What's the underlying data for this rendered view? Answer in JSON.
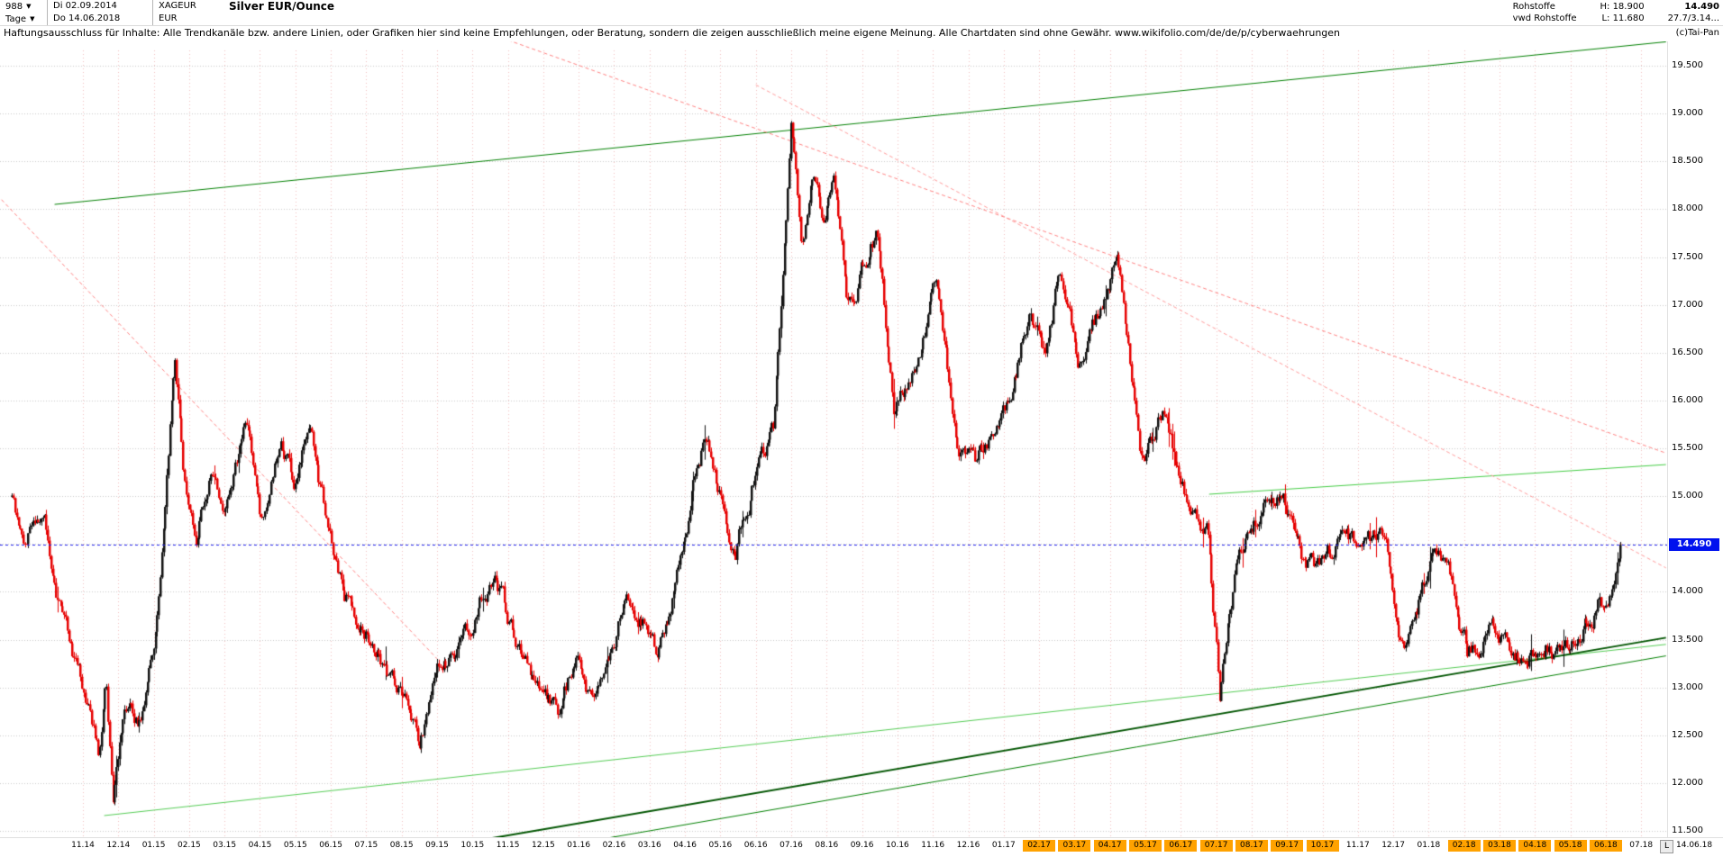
{
  "icons": {
    "dropdown_arrow": "▼"
  },
  "header": {
    "bars_count": "988",
    "start_date": "Di 02.09.2014",
    "symbol": "XAGEUR",
    "title": "Silver EUR/Ounce",
    "timeframe": "Tage",
    "end_date": "Do 14.06.2018",
    "currency": "EUR",
    "right": {
      "category": "Rohstoffe",
      "source": "vwd Rohstoffe",
      "high": "H: 18.900",
      "low": "L: 11.680",
      "last": "14.490",
      "extra": "27.7/3.14..."
    }
  },
  "disclaimer": {
    "text": "Haftungsausschluss für Inhalte: Alle Trendkanäle bzw. andere Linien, oder Grafiken hier sind keine Empfehlungen, oder Beratung, sondern die zeigen ausschließlich meine eigene Meinung. Alle Chartdaten sind ohne Gewähr.  www.wikifolio.com/de/de/p/cyberwaehrungen",
    "copyright": "(c)Tai-Pan"
  },
  "axis": {
    "y_ticks": [
      {
        "price": 19.5,
        "label": "19.500"
      },
      {
        "price": 19.0,
        "label": "19.000"
      },
      {
        "price": 18.5,
        "label": "18.500"
      },
      {
        "price": 18.0,
        "label": "18.000"
      },
      {
        "price": 17.5,
        "label": "17.500"
      },
      {
        "price": 17.0,
        "label": "17.000"
      },
      {
        "price": 16.5,
        "label": "16.500"
      },
      {
        "price": 16.0,
        "label": "16.000"
      },
      {
        "price": 15.5,
        "label": "15.500"
      },
      {
        "price": 15.0,
        "label": "15.000"
      },
      {
        "price": 14.5,
        "label": "14.500"
      },
      {
        "price": 14.0,
        "label": "14.000"
      },
      {
        "price": 13.5,
        "label": "13.500"
      },
      {
        "price": 13.0,
        "label": "13.000"
      },
      {
        "price": 12.5,
        "label": "12.500"
      },
      {
        "price": 12.0,
        "label": "12.000"
      },
      {
        "price": 11.5,
        "label": "11.500"
      }
    ],
    "price_tag": {
      "price": 14.49,
      "label": "14.490",
      "color": "#0011ee"
    },
    "x_labels": [
      {
        "m": 2,
        "label": "11.14",
        "highlight": false
      },
      {
        "m": 3,
        "label": "12.14",
        "highlight": false
      },
      {
        "m": 4,
        "label": "01.15",
        "highlight": false
      },
      {
        "m": 5,
        "label": "02.15",
        "highlight": false
      },
      {
        "m": 6,
        "label": "03.15",
        "highlight": false
      },
      {
        "m": 7,
        "label": "04.15",
        "highlight": false
      },
      {
        "m": 8,
        "label": "05.15",
        "highlight": false
      },
      {
        "m": 9,
        "label": "06.15",
        "highlight": false
      },
      {
        "m": 10,
        "label": "07.15",
        "highlight": false
      },
      {
        "m": 11,
        "label": "08.15",
        "highlight": false
      },
      {
        "m": 12,
        "label": "09.15",
        "highlight": false
      },
      {
        "m": 13,
        "label": "10.15",
        "highlight": false
      },
      {
        "m": 14,
        "label": "11.15",
        "highlight": false
      },
      {
        "m": 15,
        "label": "12.15",
        "highlight": false
      },
      {
        "m": 16,
        "label": "01.16",
        "highlight": false
      },
      {
        "m": 17,
        "label": "02.16",
        "highlight": false
      },
      {
        "m": 18,
        "label": "03.16",
        "highlight": false
      },
      {
        "m": 19,
        "label": "04.16",
        "highlight": false
      },
      {
        "m": 20,
        "label": "05.16",
        "highlight": false
      },
      {
        "m": 21,
        "label": "06.16",
        "highlight": false
      },
      {
        "m": 22,
        "label": "07.16",
        "highlight": false
      },
      {
        "m": 23,
        "label": "08.16",
        "highlight": false
      },
      {
        "m": 24,
        "label": "09.16",
        "highlight": false
      },
      {
        "m": 25,
        "label": "10.16",
        "highlight": false
      },
      {
        "m": 26,
        "label": "11.16",
        "highlight": false
      },
      {
        "m": 27,
        "label": "12.16",
        "highlight": false
      },
      {
        "m": 28,
        "label": "01.17",
        "highlight": false
      },
      {
        "m": 29,
        "label": "02.17",
        "highlight": true
      },
      {
        "m": 30,
        "label": "03.17",
        "highlight": true
      },
      {
        "m": 31,
        "label": "04.17",
        "highlight": true
      },
      {
        "m": 32,
        "label": "05.17",
        "highlight": true
      },
      {
        "m": 33,
        "label": "06.17",
        "highlight": true
      },
      {
        "m": 34,
        "label": "07.17",
        "highlight": true
      },
      {
        "m": 35,
        "label": "08.17",
        "highlight": true
      },
      {
        "m": 36,
        "label": "09.17",
        "highlight": true
      },
      {
        "m": 37,
        "label": "10.17",
        "highlight": true
      },
      {
        "m": 38,
        "label": "11.17",
        "highlight": false
      },
      {
        "m": 39,
        "label": "12.17",
        "highlight": false
      },
      {
        "m": 40,
        "label": "01.18",
        "highlight": false
      },
      {
        "m": 41,
        "label": "02.18",
        "highlight": true
      },
      {
        "m": 42,
        "label": "03.18",
        "highlight": true
      },
      {
        "m": 43,
        "label": "04.18",
        "highlight": true
      },
      {
        "m": 44,
        "label": "05.18",
        "highlight": true
      },
      {
        "m": 45,
        "label": "06.18",
        "highlight": true
      },
      {
        "m": 46,
        "label": "07.18",
        "highlight": false
      }
    ],
    "scale_button": "L",
    "last_date": "14.06.18"
  },
  "chart_data": {
    "type": "candlestick",
    "title": "Silver EUR/Ounce",
    "period": "Tage",
    "date_range": [
      "02.09.2014",
      "14.06.2018"
    ],
    "bars": 988,
    "high": 18.9,
    "low": 11.68,
    "last": 14.49,
    "x_unit": "months_since_2014-09",
    "x_range": [
      0,
      46.7
    ],
    "ylim": [
      11.43,
      19.75
    ],
    "grid": true,
    "price_path_anchors": [
      [
        0.0,
        15.0
      ],
      [
        0.35,
        14.5
      ],
      [
        0.9,
        14.8
      ],
      [
        1.4,
        13.75
      ],
      [
        2.0,
        13.05
      ],
      [
        2.45,
        12.3
      ],
      [
        2.65,
        12.95
      ],
      [
        2.85,
        11.68
      ],
      [
        3.15,
        12.8
      ],
      [
        3.6,
        12.65
      ],
      [
        4.0,
        13.6
      ],
      [
        4.35,
        15.15
      ],
      [
        4.6,
        16.5
      ],
      [
        4.85,
        15.25
      ],
      [
        5.2,
        14.6
      ],
      [
        5.6,
        15.3
      ],
      [
        6.0,
        14.9
      ],
      [
        6.6,
        15.7
      ],
      [
        7.0,
        14.75
      ],
      [
        7.6,
        15.6
      ],
      [
        8.0,
        15.1
      ],
      [
        8.4,
        15.65
      ],
      [
        8.8,
        14.9
      ],
      [
        9.4,
        14.05
      ],
      [
        10.0,
        13.6
      ],
      [
        10.6,
        13.2
      ],
      [
        11.2,
        12.75
      ],
      [
        11.5,
        12.35
      ],
      [
        11.9,
        13.1
      ],
      [
        12.4,
        13.3
      ],
      [
        13.0,
        13.6
      ],
      [
        13.6,
        14.2
      ],
      [
        14.1,
        13.6
      ],
      [
        14.6,
        13.2
      ],
      [
        15.1,
        12.95
      ],
      [
        15.45,
        12.65
      ],
      [
        15.9,
        13.3
      ],
      [
        16.3,
        12.85
      ],
      [
        16.8,
        13.3
      ],
      [
        17.3,
        13.95
      ],
      [
        17.8,
        13.75
      ],
      [
        18.2,
        13.3
      ],
      [
        18.7,
        14.0
      ],
      [
        19.3,
        15.3
      ],
      [
        19.55,
        15.6
      ],
      [
        20.0,
        15.0
      ],
      [
        20.4,
        14.45
      ],
      [
        20.9,
        15.1
      ],
      [
        21.5,
        15.7
      ],
      [
        22.0,
        18.85
      ],
      [
        22.3,
        17.6
      ],
      [
        22.6,
        18.3
      ],
      [
        22.9,
        17.95
      ],
      [
        23.2,
        18.35
      ],
      [
        23.6,
        17.0
      ],
      [
        24.0,
        17.4
      ],
      [
        24.4,
        17.75
      ],
      [
        24.9,
        15.95
      ],
      [
        25.4,
        16.3
      ],
      [
        26.1,
        17.25
      ],
      [
        26.7,
        15.4
      ],
      [
        27.2,
        15.3
      ],
      [
        27.7,
        15.75
      ],
      [
        28.2,
        16.1
      ],
      [
        28.7,
        16.9
      ],
      [
        29.2,
        16.6
      ],
      [
        29.6,
        17.4
      ],
      [
        30.1,
        16.5
      ],
      [
        30.7,
        16.9
      ],
      [
        31.2,
        17.45
      ],
      [
        31.9,
        15.4
      ],
      [
        32.5,
        15.9
      ],
      [
        33.2,
        14.9
      ],
      [
        33.8,
        14.6
      ],
      [
        34.1,
        12.98
      ],
      [
        34.5,
        14.1
      ],
      [
        35.0,
        14.7
      ],
      [
        35.9,
        15.1
      ],
      [
        36.5,
        14.3
      ],
      [
        37.0,
        14.25
      ],
      [
        37.6,
        14.6
      ],
      [
        38.2,
        14.4
      ],
      [
        38.7,
        14.55
      ],
      [
        39.3,
        13.45
      ],
      [
        40.1,
        14.35
      ],
      [
        40.5,
        14.45
      ],
      [
        41.1,
        13.4
      ],
      [
        41.7,
        13.6
      ],
      [
        42.3,
        13.35
      ],
      [
        42.8,
        13.3
      ],
      [
        43.3,
        13.55
      ],
      [
        43.8,
        13.4
      ],
      [
        44.3,
        13.5
      ],
      [
        44.8,
        13.95
      ],
      [
        45.0,
        13.8
      ],
      [
        45.42,
        14.49
      ]
    ],
    "trend_lines": [
      {
        "name": "upper-channel",
        "color": "#008000",
        "width": 1,
        "dash": null,
        "from": [
          1.2,
          18.05
        ],
        "to": [
          46.7,
          19.75
        ]
      },
      {
        "name": "lower-channel",
        "color": "#55cc55",
        "width": 1,
        "dash": null,
        "from": [
          2.6,
          11.66
        ],
        "to": [
          46.7,
          13.45
        ]
      },
      {
        "name": "support-main",
        "color": "#005500",
        "width": 2,
        "dash": null,
        "from": [
          10.0,
          11.2
        ],
        "to": [
          46.7,
          13.52
        ]
      },
      {
        "name": "support-secondary",
        "color": "#008000",
        "width": 1,
        "dash": null,
        "from": [
          12.5,
          11.15
        ],
        "to": [
          46.7,
          13.33
        ]
      },
      {
        "name": "minor-resistance",
        "color": "#44cc44",
        "width": 1,
        "dash": null,
        "from": [
          33.8,
          15.02
        ],
        "to": [
          46.7,
          15.33
        ]
      },
      {
        "name": "downtrend-2015",
        "color": "#ff8080",
        "width": 1,
        "dash": [
          4,
          3
        ],
        "from": [
          -0.3,
          18.1
        ],
        "to": [
          12.0,
          13.3
        ]
      },
      {
        "name": "downtrend-major",
        "color": "#ff8080",
        "width": 1,
        "dash": [
          4,
          3
        ],
        "from": [
          13.0,
          19.9
        ],
        "to": [
          46.7,
          15.45
        ]
      },
      {
        "name": "downtrend-secondary",
        "color": "#ff9999",
        "width": 1,
        "dash": [
          4,
          3
        ],
        "from": [
          21.0,
          19.3
        ],
        "to": [
          46.7,
          14.25
        ]
      }
    ],
    "reference_line": {
      "price": 14.49,
      "color": "#2222ee",
      "dash": [
        3,
        3
      ]
    },
    "colors": {
      "up": "#111111",
      "down": "#e60000",
      "grid": "#c9c9c9",
      "month_grid": "#f0bdbd"
    }
  }
}
